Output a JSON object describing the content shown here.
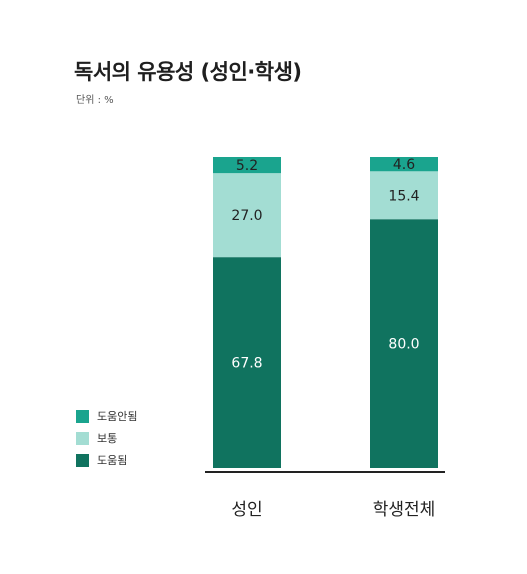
{
  "title": "독서의 유용성 (성인·학생)",
  "unit": "단위 : %",
  "colors": {
    "not_helpful": "#1aa48e",
    "neutral": "#a3ddd3",
    "helpful": "#10735f"
  },
  "chart_data": {
    "type": "bar",
    "stacked": true,
    "orientation": "vertical",
    "title": "독서의 유용성 (성인·학생)",
    "unit": "%",
    "ylim": [
      0,
      100
    ],
    "grid": false,
    "legend_position": "left-bottom",
    "categories": [
      "성인",
      "학생전체"
    ],
    "series": [
      {
        "name": "도움됨",
        "color": "#10735f",
        "label_color": "#ffffff",
        "values": [
          67.8,
          80.0
        ],
        "labels": [
          "67.8",
          "80.0"
        ]
      },
      {
        "name": "보통",
        "color": "#a3ddd3",
        "label_color": "#222222",
        "values": [
          27.0,
          15.4
        ],
        "labels": [
          "27.0",
          "15.4"
        ]
      },
      {
        "name": "도움안됨",
        "color": "#1aa48e",
        "label_color": "#222222",
        "values": [
          5.2,
          4.6
        ],
        "labels": [
          "5.2",
          "4.6"
        ]
      }
    ]
  },
  "legend": [
    {
      "label": "도움안됨",
      "color": "#1aa48e"
    },
    {
      "label": "보통",
      "color": "#a3ddd3"
    },
    {
      "label": "도움됨",
      "color": "#10735f"
    }
  ]
}
